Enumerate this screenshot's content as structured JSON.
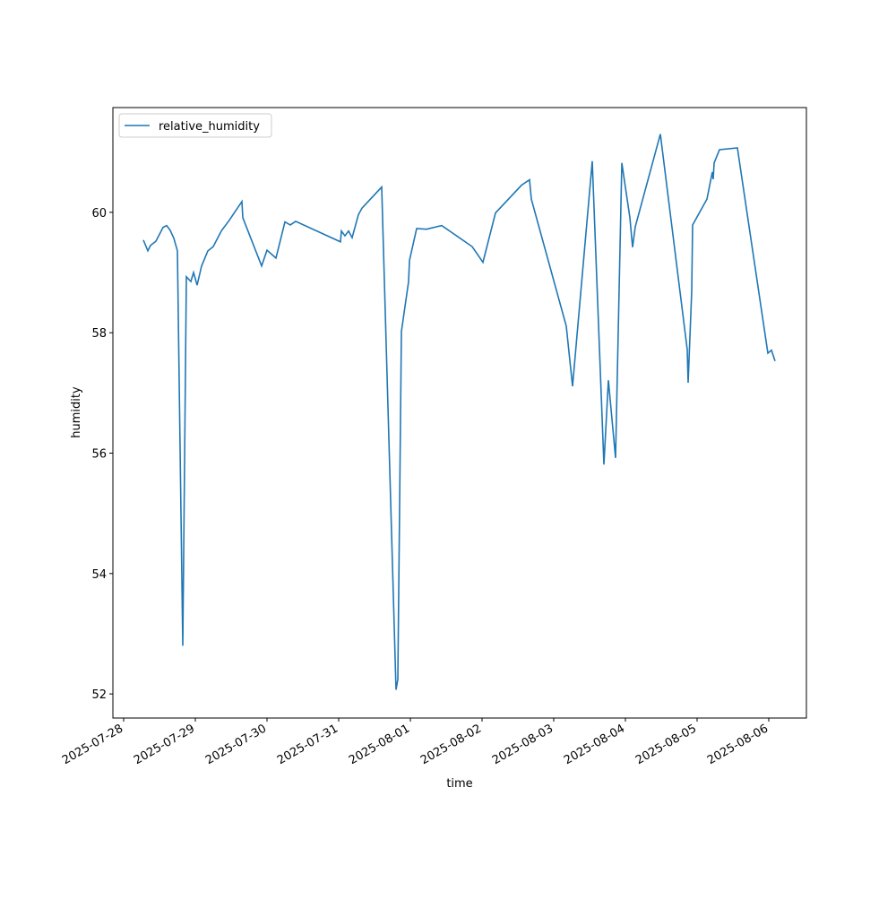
{
  "chart_data": {
    "type": "line",
    "x_label": "time",
    "y_label": "humidity",
    "legend": "upper left",
    "xlim": [
      "2025-07-27T20:24",
      "2025-08-06T12:36"
    ],
    "xticks": [
      "2025-07-28",
      "2025-07-29",
      "2025-07-30",
      "2025-07-31",
      "2025-08-01",
      "2025-08-02",
      "2025-08-03",
      "2025-08-04",
      "2025-08-05",
      "2025-08-06"
    ],
    "ylim": [
      51.6,
      61.74
    ],
    "yticks": [
      52,
      54,
      56,
      58,
      60
    ],
    "x": [
      "2025-07-28T06:36",
      "2025-07-28T08:06",
      "2025-07-28T09:00",
      "2025-07-28T10:48",
      "2025-07-28T13:12",
      "2025-07-28T14:24",
      "2025-07-28T15:36",
      "2025-07-28T16:48",
      "2025-07-28T18:00",
      "2025-07-28T19:48",
      "2025-07-28T21:00",
      "2025-07-28T22:30",
      "2025-07-28T23:24",
      "2025-07-29T00:36",
      "2025-07-29T02:06",
      "2025-07-29T04:12",
      "2025-07-29T06:00",
      "2025-07-29T08:42",
      "2025-07-29T11:24",
      "2025-07-29T15:36",
      "2025-07-29T15:54",
      "2025-07-29T22:12",
      "2025-07-30T00:00",
      "2025-07-30T03:00",
      "2025-07-30T06:00",
      "2025-07-30T07:48",
      "2025-07-30T09:36",
      "2025-07-31T00:36",
      "2025-07-31T00:54",
      "2025-07-31T02:06",
      "2025-07-31T03:18",
      "2025-07-31T04:30",
      "2025-07-31T06:36",
      "2025-07-31T07:48",
      "2025-07-31T14:24",
      "2025-07-31T19:12",
      "2025-07-31T19:48",
      "2025-07-31T21:00",
      "2025-07-31T23:24",
      "2025-07-31T23:42",
      "2025-08-01T02:06",
      "2025-08-01T05:24",
      "2025-08-01T10:30",
      "2025-08-01T20:42",
      "2025-08-02T00:18",
      "2025-08-02T04:30",
      "2025-08-02T13:12",
      "2025-08-02T15:54",
      "2025-08-02T16:30",
      "2025-08-03T04:12",
      "2025-08-03T06:18",
      "2025-08-03T12:54",
      "2025-08-03T16:48",
      "2025-08-03T18:18",
      "2025-08-03T20:42",
      "2025-08-03T22:48",
      "2025-08-04T01:30",
      "2025-08-04T02:24",
      "2025-08-04T03:18",
      "2025-08-04T11:42",
      "2025-08-04T20:42",
      "2025-08-04T21:00",
      "2025-08-04T22:12",
      "2025-08-04T22:30",
      "2025-08-05T03:18",
      "2025-08-05T05:06",
      "2025-08-05T05:24",
      "2025-08-05T05:42",
      "2025-08-05T07:30",
      "2025-08-05T13:30",
      "2025-08-05T23:42",
      "2025-08-06T00:54",
      "2025-08-06T02:06"
    ],
    "series": [
      {
        "name": "relative_humidity",
        "color": "#1f77b4",
        "values": [
          59.54,
          59.36,
          59.45,
          59.52,
          59.75,
          59.78,
          59.7,
          59.57,
          59.36,
          52.8,
          58.93,
          58.85,
          59.0,
          58.79,
          59.11,
          59.36,
          59.43,
          59.69,
          59.87,
          60.18,
          59.91,
          59.11,
          59.37,
          59.24,
          59.84,
          59.79,
          59.85,
          59.51,
          59.69,
          59.61,
          59.69,
          59.58,
          59.96,
          60.07,
          60.42,
          52.07,
          52.24,
          58.02,
          58.85,
          59.2,
          59.73,
          59.72,
          59.78,
          59.43,
          59.17,
          59.99,
          60.45,
          60.54,
          60.22,
          58.11,
          57.11,
          60.85,
          55.81,
          57.21,
          55.92,
          60.82,
          59.91,
          59.42,
          59.76,
          61.3,
          57.72,
          57.17,
          58.69,
          59.79,
          60.22,
          60.67,
          60.55,
          60.82,
          61.04,
          61.07,
          57.66,
          57.71,
          57.53
        ]
      }
    ]
  }
}
